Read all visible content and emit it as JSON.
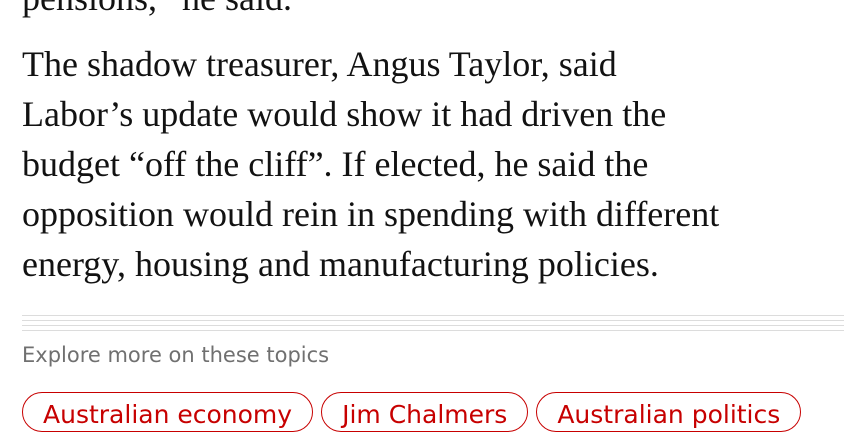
{
  "previous_paragraph_tail": "pensions,” he said.",
  "paragraph": {
    "lines": [
      "The shadow treasurer, Angus Taylor, said",
      "Labor’s update would show it had driven the",
      "budget “off the cliff”. If elected, he said the",
      "opposition would rein in spending with different",
      "energy, housing and manufacturing policies."
    ]
  },
  "topics": {
    "heading": "Explore more on these topics",
    "tags": [
      "Australian economy",
      "Jim Chalmers",
      "Australian politics"
    ]
  }
}
